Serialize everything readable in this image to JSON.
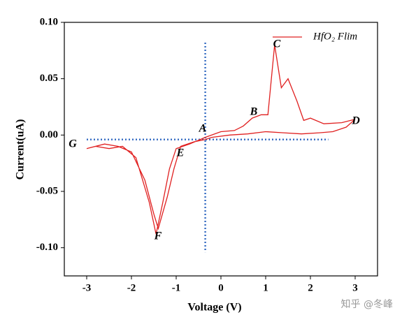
{
  "chart_data": {
    "type": "line",
    "x_label": "Voltage (V)",
    "y_label": "Current(uA)",
    "xlim": [
      -3.5,
      3.5
    ],
    "xticks": [
      -3,
      -2,
      -1,
      0,
      1,
      2,
      3
    ],
    "ylim": [
      -0.125,
      0.1
    ],
    "yticks": [
      {
        "value": 0.1,
        "label": "0.10"
      },
      0.05,
      {
        "value": 0,
        "label": "0.00"
      },
      -0.05,
      {
        "value": -0.1,
        "label": "-0.10"
      }
    ],
    "legend": "top-right",
    "series": [
      {
        "name": "HfO₂ Flim",
        "color": "#e02020",
        "x": [
          3.0,
          2.8,
          2.5,
          2.2,
          1.8,
          1.4,
          1.0,
          0.6,
          0.2,
          -0.2,
          -0.35,
          -0.6,
          -0.9,
          -1.05,
          -1.2,
          -1.4,
          -1.5,
          -1.7,
          -2.0,
          -2.3,
          -2.6,
          -3.0,
          -2.8,
          -2.5,
          -2.2,
          -1.9,
          -1.6,
          -1.45,
          -1.3,
          -1.15,
          -1.0,
          -0.7,
          -0.35,
          0.0,
          0.3,
          0.5,
          0.7,
          0.9,
          1.05,
          1.2,
          1.35,
          1.5,
          1.7,
          1.85,
          2.0,
          2.3,
          2.7,
          3.0
        ],
        "values": [
          0.014,
          0.007,
          0.003,
          0.002,
          0.001,
          0.002,
          0.003,
          0.001,
          0.0,
          -0.002,
          -0.004,
          -0.006,
          -0.01,
          -0.03,
          -0.055,
          -0.083,
          -0.07,
          -0.04,
          -0.015,
          -0.01,
          -0.008,
          -0.012,
          -0.01,
          -0.012,
          -0.01,
          -0.02,
          -0.06,
          -0.088,
          -0.06,
          -0.03,
          -0.012,
          -0.008,
          -0.002,
          0.003,
          0.004,
          0.008,
          0.015,
          0.018,
          0.018,
          0.08,
          0.042,
          0.05,
          0.03,
          0.013,
          0.015,
          0.01,
          0.011,
          0.014
        ]
      }
    ],
    "reference_lines": [
      {
        "color": "#3a6fc4",
        "x": [
          -0.35,
          -0.35
        ],
        "y": [
          0.082,
          -0.104
        ]
      },
      {
        "color": "#3a6fc4",
        "x": [
          -3.0,
          2.4
        ],
        "y": [
          -0.004,
          -0.004
        ]
      }
    ],
    "annotations": [
      "A",
      "B",
      "C",
      "D",
      "E",
      "F",
      "G"
    ],
    "watermark": "知乎 @冬峰"
  }
}
